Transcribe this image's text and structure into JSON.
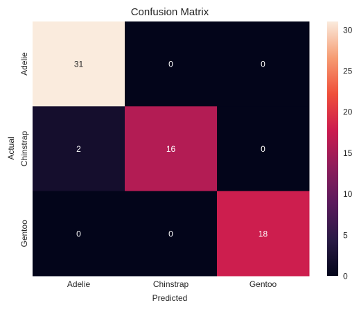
{
  "chart_data": {
    "type": "heatmap",
    "title": "Confusion Matrix",
    "xlabel": "Predicted",
    "ylabel": "Actual",
    "x_categories": [
      "Adelie",
      "Chinstrap",
      "Gentoo"
    ],
    "y_categories": [
      "Adelie",
      "Chinstrap",
      "Gentoo"
    ],
    "values": [
      [
        31,
        0,
        0
      ],
      [
        2,
        16,
        0
      ],
      [
        0,
        0,
        18
      ]
    ],
    "colorbar": {
      "range": [
        0,
        31
      ],
      "ticks": [
        0,
        5,
        10,
        15,
        20,
        25,
        30
      ],
      "colormap": "rocket",
      "stops": [
        "#03051a",
        "#2a1a45",
        "#5a1a5c",
        "#8e1d5b",
        "#cb1b4f",
        "#ef4f3a",
        "#f69c73",
        "#faebdd"
      ]
    },
    "annotation_colors": {
      "light": "#ffffff",
      "dark": "#262626"
    },
    "grid": false
  }
}
